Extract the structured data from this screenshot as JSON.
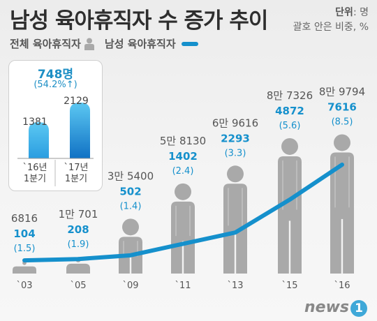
{
  "title": "남성 육아휴직자 수 증가 추이",
  "unit_line1_label": "단위",
  "unit_line1_value": ": 명",
  "unit_line2": "괄호 안은 비중, %",
  "legend": {
    "total": "전체 육아휴직자",
    "male": "남성 육아휴직자"
  },
  "inset": {
    "increase": "748명",
    "increase_pct": "(54.2%↑)",
    "bars": [
      {
        "label_line1": "`16년",
        "label_line2": "1분기",
        "value": 1381,
        "display": "1381"
      },
      {
        "label_line1": "`17년",
        "label_line2": "1분기",
        "value": 2129,
        "display": "2129"
      }
    ]
  },
  "brand": {
    "text": "news",
    "mark": "1"
  },
  "colors": {
    "accent": "#1590cc",
    "person": "#a9a9a9",
    "title": "#2e2e2e"
  },
  "chart_data": {
    "type": "line",
    "categories": [
      "`03",
      "`05",
      "`09",
      "`11",
      "`13",
      "`15",
      "`16"
    ],
    "total_series": {
      "values": [
        6816,
        10701,
        35400,
        58130,
        69616,
        87326,
        89794
      ],
      "labels": [
        "6816",
        "1만 701",
        "3만 5400",
        "5만 8130",
        "6만 9616",
        "8만 7326",
        "8만 9794"
      ]
    },
    "series": [
      {
        "name": "남성 육아휴직자",
        "values": [
          104,
          208,
          502,
          1402,
          2293,
          4872,
          7616
        ],
        "share_pct": [
          1.5,
          1.9,
          1.4,
          2.4,
          3.3,
          5.6,
          8.5
        ],
        "share_labels": [
          "(1.5)",
          "(1.9)",
          "(1.4)",
          "(2.4)",
          "(3.3)",
          "(5.6)",
          "(8.5)"
        ]
      }
    ]
  }
}
